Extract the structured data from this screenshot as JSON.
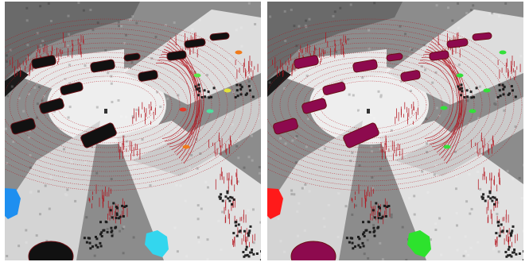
{
  "figure": {
    "panels": [
      {
        "name": "left-panel",
        "object_palette": "instance-colors"
      },
      {
        "name": "right-panel",
        "object_palette": "class-colors"
      }
    ]
  },
  "colors": {
    "ground_gray": "#8c8c8c",
    "free_space": "#f4f4f4",
    "lidar_points": "#b3121c",
    "shadow": "#111111",
    "left": {
      "car": "#111111",
      "car_edge": "#6b0f14",
      "pedestrian_green": "#5ee34a",
      "pedestrian_orange": "#f07a1a",
      "pedestrian_yellow": "#e2e23a",
      "pedestrian_mint": "#4de0a0",
      "pedestrian_red": "#e23a2a",
      "bottom_left_object": "#1e8ff0",
      "bottom_right_object": "#33d6ee"
    },
    "right": {
      "car": "#8d0a4e",
      "car_edge": "#6b0f14",
      "pedestrian": "#33e03a",
      "bottom_left_object": "#ff1a1a",
      "bottom_right_object": "#2de22d"
    }
  }
}
